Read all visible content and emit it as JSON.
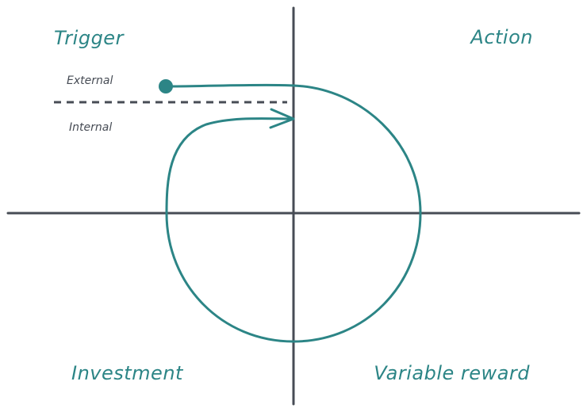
{
  "colors": {
    "axis": "#474c55",
    "accent": "#2c8586",
    "subtext": "#474c55",
    "background": "#ffffff"
  },
  "quadrants": {
    "top_left": "Trigger",
    "top_right": "Action",
    "bottom_left": "Investment",
    "bottom_right": "Variable reward"
  },
  "trigger_types": {
    "above_line": "External",
    "below_line": "Internal"
  }
}
